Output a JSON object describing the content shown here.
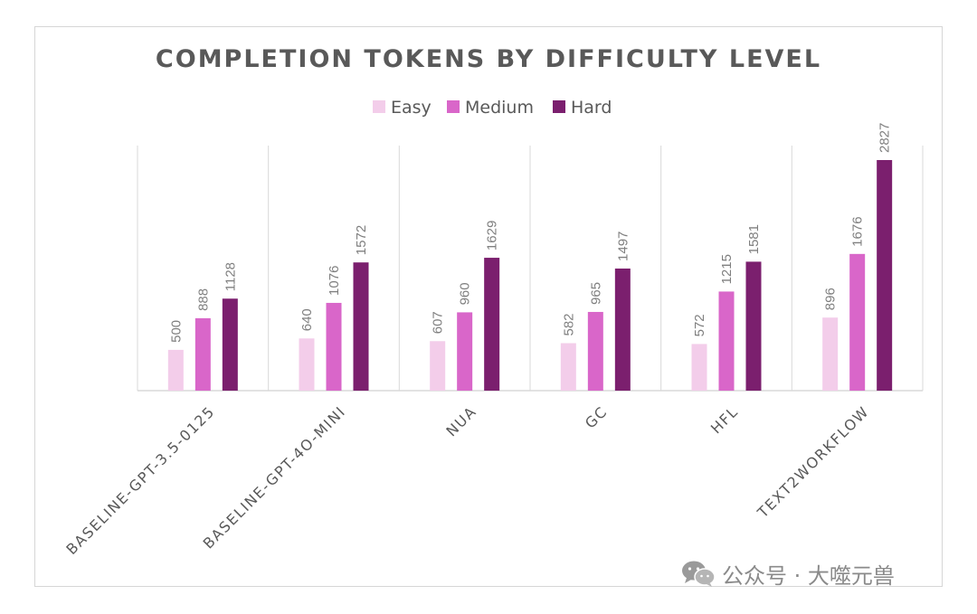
{
  "chart_data": {
    "type": "bar",
    "title": "COMPLETION TOKENS BY DIFFICULTY LEVEL",
    "categories": [
      "BASELINE-GPT-3.5-0125",
      "BASELINE-GPT-4O-MINI",
      "NUA",
      "GC",
      "HFL",
      "TEXT2WORKFLOW"
    ],
    "series": [
      {
        "name": "Easy",
        "color": "#f3cdea",
        "values": [
          500,
          640,
          607,
          582,
          572,
          896
        ]
      },
      {
        "name": "Medium",
        "color": "#d966c9",
        "values": [
          888,
          1076,
          960,
          965,
          1215,
          1676
        ]
      },
      {
        "name": "Hard",
        "color": "#7b1f6e",
        "values": [
          1128,
          1572,
          1629,
          1497,
          1581,
          2827
        ]
      }
    ],
    "xlabel": "",
    "ylabel": "",
    "ylim": [
      0,
      3000
    ],
    "grid": false,
    "legend_position": "top-center",
    "data_labels": true
  },
  "watermark": {
    "text": "公众号 · 大噬元兽",
    "icon": "wechat-icon"
  }
}
